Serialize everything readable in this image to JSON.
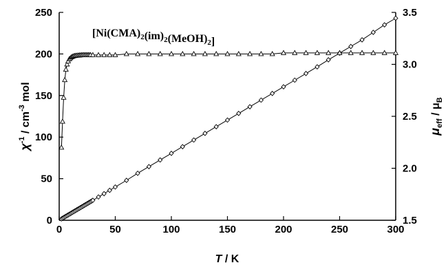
{
  "chart_data": {
    "type": "scatter",
    "title": "",
    "annotation": "[Ni(CMA)2(im)2(MeOH)2]",
    "xlabel": "T / K",
    "ylabel_left": "χ-1 / cm-3 mol",
    "ylabel_right": "μeff / μB",
    "xlim": [
      0,
      300
    ],
    "ylim_left": [
      0,
      250
    ],
    "ylim_right": [
      1.5,
      3.5
    ],
    "x_ticks": [
      "0",
      "50",
      "100",
      "150",
      "200",
      "250",
      "300"
    ],
    "y_left_ticks": [
      "0",
      "50",
      "100",
      "150",
      "200",
      "250"
    ],
    "y_right_ticks": [
      "1.5",
      "2.0",
      "2.5",
      "3.0",
      "3.5"
    ],
    "grid": false,
    "series": [
      {
        "axis": "left",
        "marker": "diamond",
        "x": [
          2,
          3,
          4,
          5,
          6,
          7,
          8,
          9,
          10,
          11,
          12,
          13,
          14,
          15,
          16,
          17,
          18,
          19,
          20,
          21,
          22,
          23,
          24,
          25,
          26,
          27,
          28,
          29,
          30,
          35,
          40,
          45,
          50,
          60,
          70,
          80,
          90,
          100,
          110,
          120,
          130,
          140,
          150,
          160,
          170,
          180,
          190,
          200,
          210,
          220,
          230,
          240,
          250,
          260,
          270,
          280,
          290,
          300
        ],
        "values": [
          1.6,
          2.4,
          3.2,
          4.0,
          4.8,
          5.6,
          6.4,
          7.2,
          8.0,
          8.8,
          9.6,
          10.4,
          11.2,
          12.0,
          12.8,
          13.6,
          14.4,
          15.2,
          16.0,
          16.8,
          17.6,
          18.4,
          19.2,
          20.0,
          20.8,
          21.6,
          22.4,
          23.2,
          24.0,
          28.0,
          32.0,
          36.0,
          40.0,
          48.0,
          56.5,
          64.5,
          72.5,
          80.5,
          88.5,
          96.5,
          104.5,
          112.5,
          120.5,
          128.5,
          136.5,
          144.5,
          152.5,
          160.5,
          168.5,
          176.5,
          184.5,
          193.0,
          201.0,
          209.0,
          217.0,
          226.0,
          235.0,
          243.0
        ]
      },
      {
        "axis": "right",
        "marker": "triangle",
        "x": [
          2,
          3,
          4,
          5,
          6,
          7,
          8,
          9,
          10,
          11,
          12,
          13,
          14,
          15,
          16,
          17,
          18,
          19,
          20,
          21,
          22,
          23,
          24,
          25,
          26,
          27,
          28,
          30,
          35,
          40,
          45,
          50,
          60,
          70,
          80,
          90,
          100,
          110,
          120,
          130,
          140,
          150,
          160,
          170,
          180,
          190,
          200,
          210,
          220,
          230,
          240,
          250,
          260,
          270,
          280,
          290,
          300
        ],
        "values": [
          2.2,
          2.45,
          2.68,
          2.85,
          2.95,
          3.0,
          3.03,
          3.05,
          3.06,
          3.07,
          3.075,
          3.08,
          3.082,
          3.084,
          3.085,
          3.086,
          3.087,
          3.088,
          3.089,
          3.09,
          3.09,
          3.09,
          3.09,
          3.09,
          3.09,
          3.09,
          3.09,
          3.09,
          3.09,
          3.09,
          3.09,
          3.09,
          3.1,
          3.1,
          3.1,
          3.1,
          3.1,
          3.1,
          3.1,
          3.1,
          3.1,
          3.1,
          3.1,
          3.1,
          3.1,
          3.1,
          3.11,
          3.11,
          3.11,
          3.11,
          3.11,
          3.11,
          3.11,
          3.11,
          3.11,
          3.11,
          3.11
        ]
      }
    ]
  }
}
